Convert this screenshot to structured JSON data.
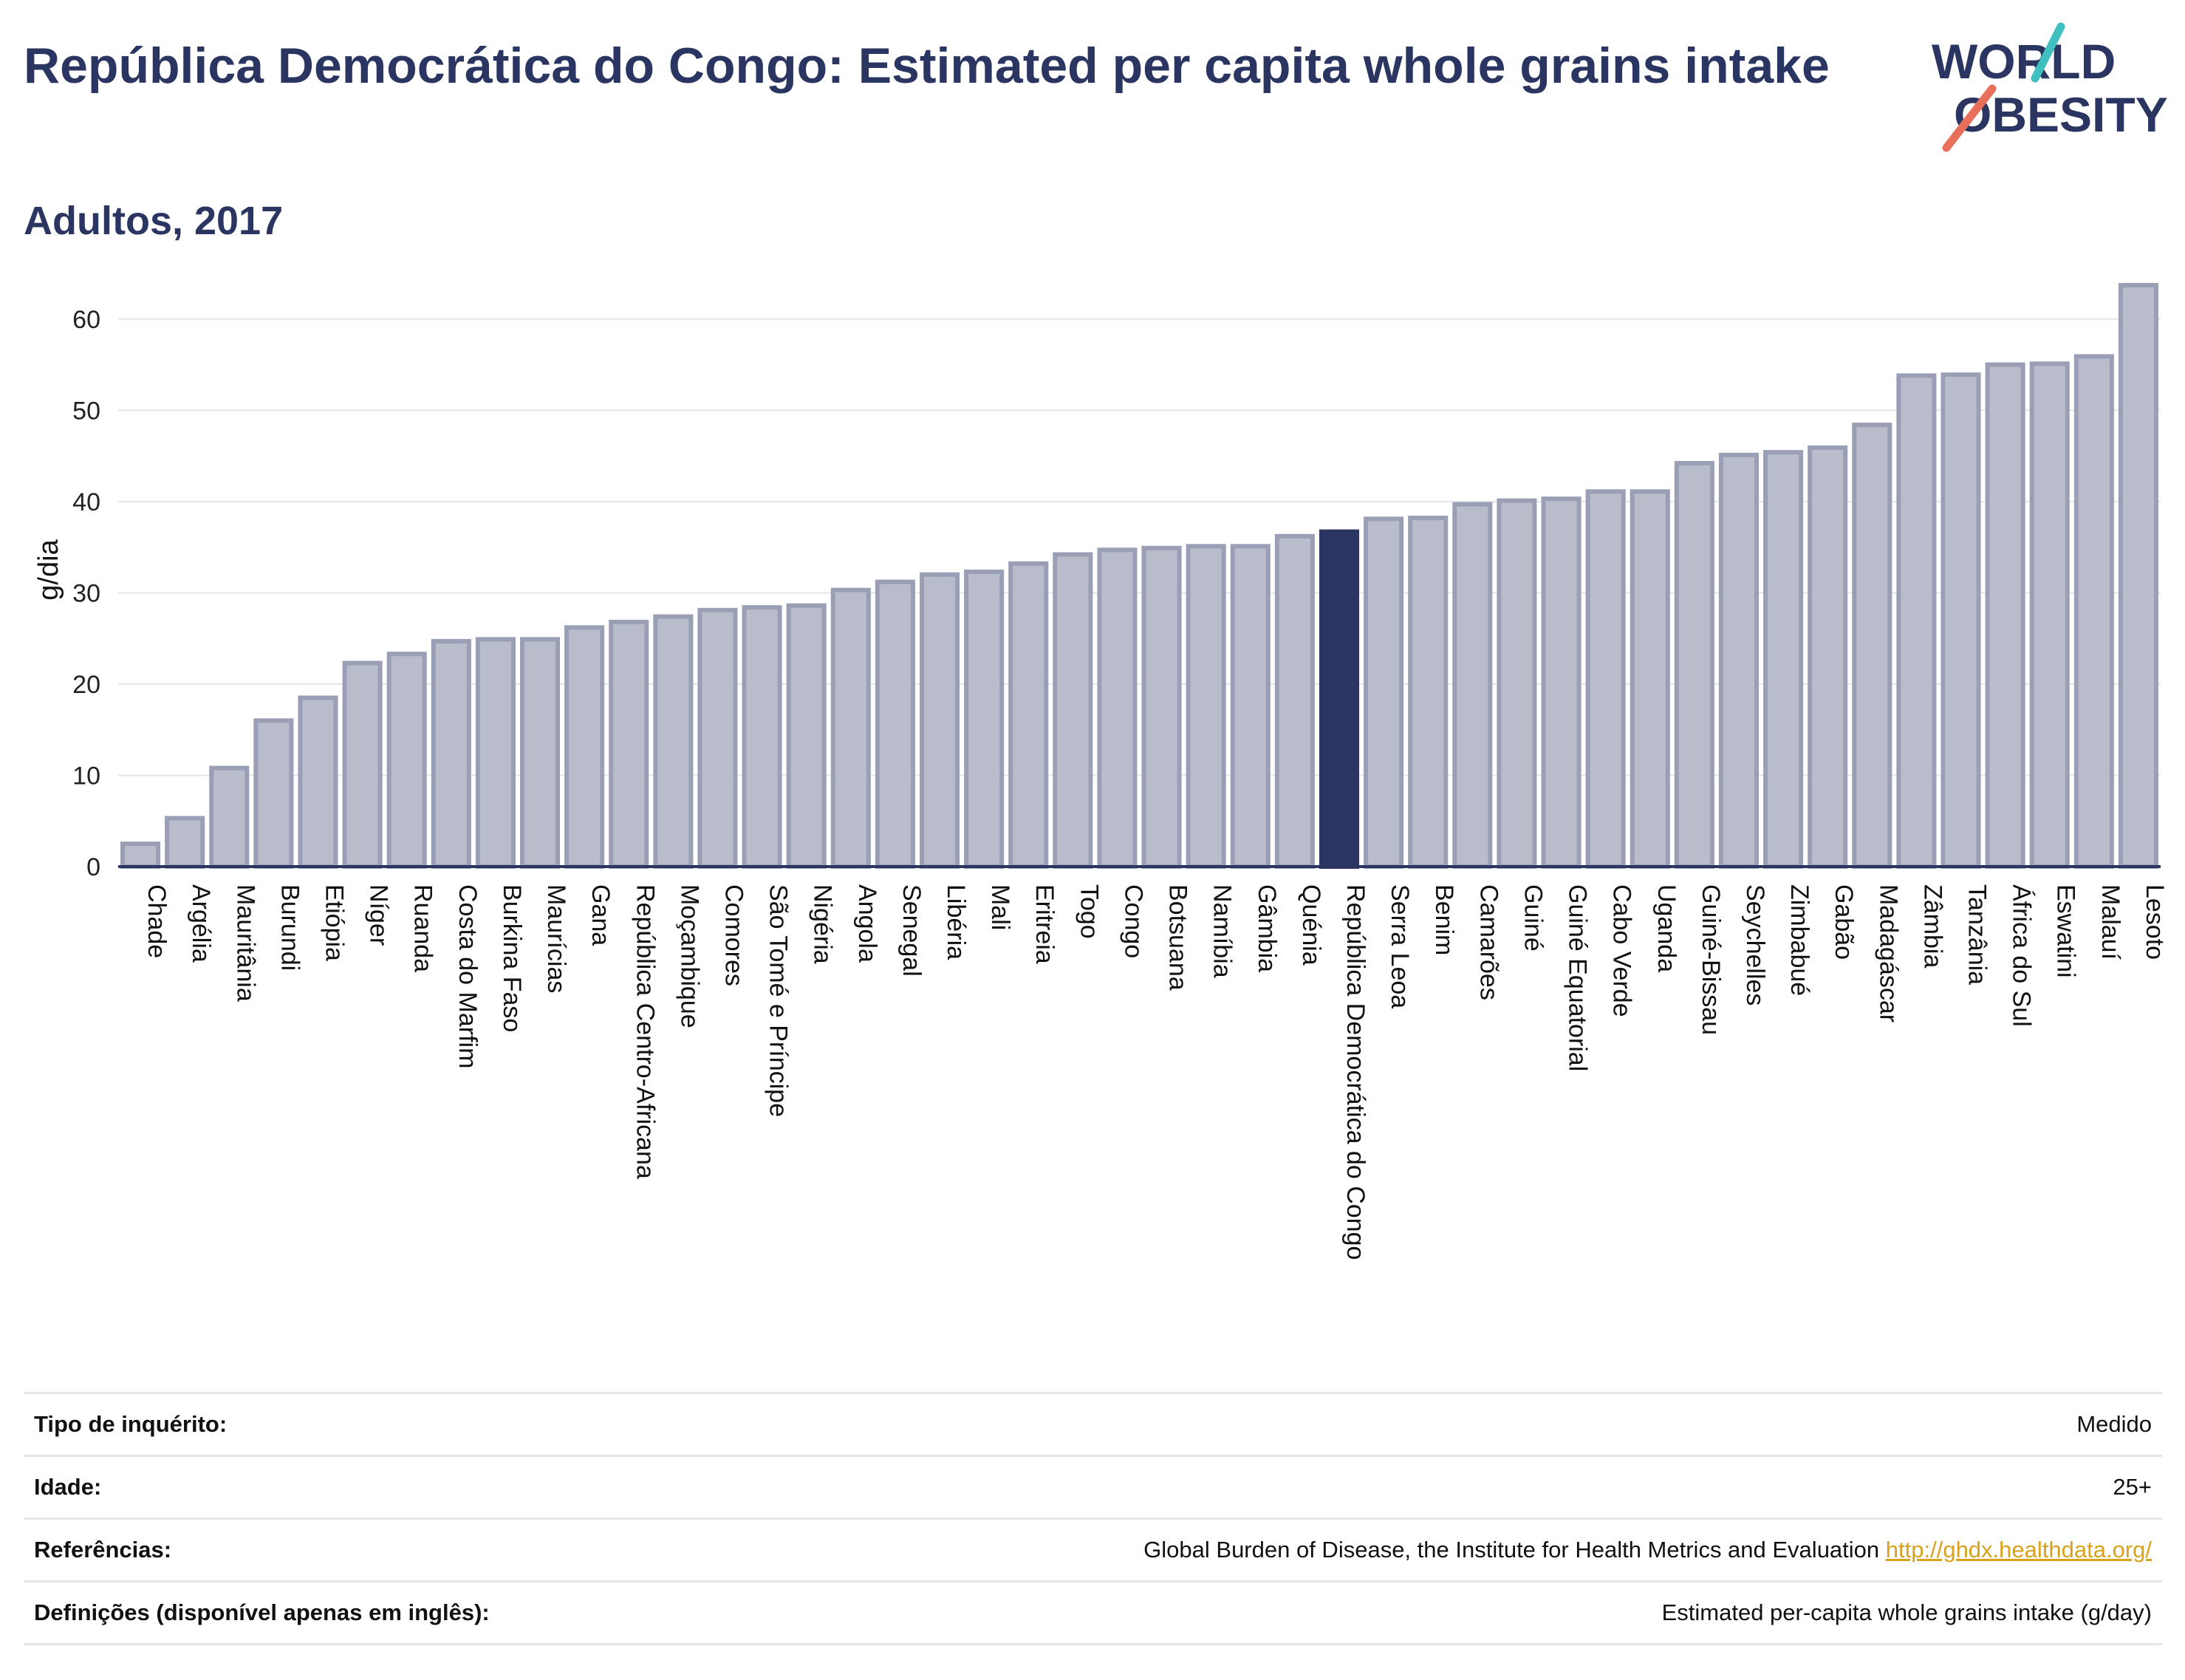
{
  "title": "República Democrática do Congo: Estimated per capita whole grains intake",
  "subtitle": "Adultos, 2017",
  "logo": {
    "line1": "WORLD",
    "line2": "OBESITY",
    "accent_teal": "#3fbfbf",
    "accent_coral": "#e8705a"
  },
  "chart_data": {
    "type": "bar",
    "ylabel": "g/dia",
    "ylim": [
      0,
      65
    ],
    "yticks": [
      0,
      10,
      20,
      30,
      40,
      50,
      60
    ],
    "grid": true,
    "highlight": "República Democrática do Congo",
    "colors": {
      "bar": "#b8bccb",
      "bar_border": "#9a9fb5",
      "highlight": "#2a3562"
    },
    "categories": [
      "Chade",
      "Argélia",
      "Mauritânia",
      "Burundi",
      "Etiópia",
      "Níger",
      "Ruanda",
      "Costa do Marfim",
      "Burkina Faso",
      "Maurícias",
      "Gana",
      "República Centro-Africana",
      "Moçambique",
      "Comores",
      "São Tomé e Príncipe",
      "Nigéria",
      "Angola",
      "Senegal",
      "Libéria",
      "Mali",
      "Eritreia",
      "Togo",
      "Congo",
      "Botsuana",
      "Namíbia",
      "Gâmbia",
      "Quénia",
      "República Democrática do Congo",
      "Serra Leoa",
      "Benim",
      "Camarões",
      "Guiné",
      "Guiné Equatorial",
      "Cabo Verde",
      "Uganda",
      "Guiné-Bissau",
      "Seychelles",
      "Zimbabué",
      "Gabão",
      "Madagáscar",
      "Zâmbia",
      "Tanzânia",
      "África do Sul",
      "Eswatini",
      "Malauí",
      "Lesoto"
    ],
    "values": [
      2.5,
      5.3,
      10.8,
      16.0,
      18.5,
      22.3,
      23.3,
      24.7,
      24.9,
      24.9,
      26.2,
      26.8,
      27.4,
      28.1,
      28.4,
      28.6,
      30.3,
      31.2,
      32.0,
      32.3,
      33.2,
      34.2,
      34.7,
      34.9,
      35.1,
      35.1,
      36.2,
      36.7,
      38.1,
      38.2,
      39.7,
      40.1,
      40.3,
      41.1,
      41.1,
      44.2,
      45.1,
      45.4,
      45.9,
      48.4,
      53.8,
      53.9,
      55.0,
      55.1,
      55.9,
      63.7
    ]
  },
  "footer": {
    "rows": [
      {
        "label": "Tipo de inquérito:",
        "value": "Medido",
        "link": ""
      },
      {
        "label": "Idade:",
        "value": "25+",
        "link": ""
      },
      {
        "label": "Referências:",
        "value": "Global Burden of Disease, the Institute for Health Metrics and Evaluation",
        "link": "http://ghdx.healthdata.org/"
      },
      {
        "label": "Definições (disponível apenas em inglês):",
        "value": "Estimated per-capita whole grains intake (g/day)",
        "link": ""
      }
    ]
  }
}
